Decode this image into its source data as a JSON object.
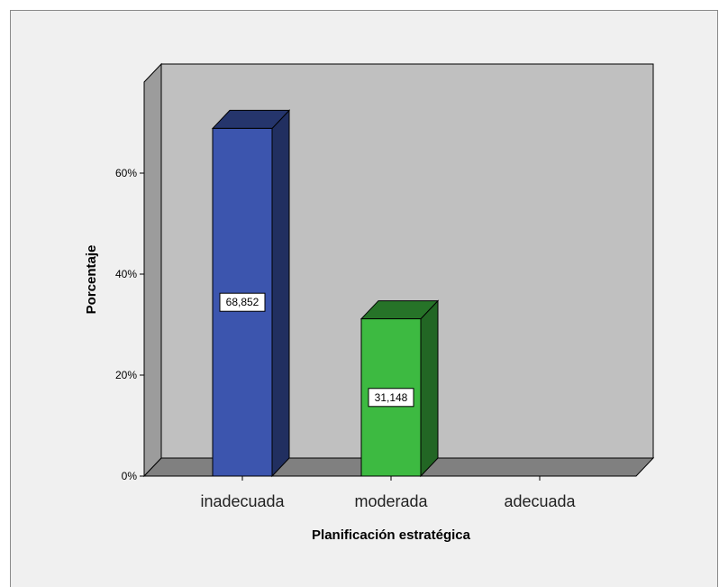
{
  "chart_data": {
    "type": "bar",
    "categories": [
      "inadecuada",
      "moderada",
      "adecuada"
    ],
    "values": [
      68.852,
      31.148,
      0
    ],
    "data_labels": [
      "68,852",
      "31,148",
      ""
    ],
    "xlabel": "Planificación estratégica",
    "ylabel": "Porcentaje",
    "ylim": [
      0,
      70
    ],
    "yticks": [
      0,
      20,
      40,
      60
    ],
    "ytick_labels": [
      "0%",
      "20%",
      "40%",
      "60%"
    ],
    "style": "3d",
    "grid": false,
    "colors": {
      "series": [
        "#3c55ae",
        "#3dba41",
        "#888888"
      ],
      "plot_back": "#c0c0c0",
      "floor": "#808080"
    }
  }
}
